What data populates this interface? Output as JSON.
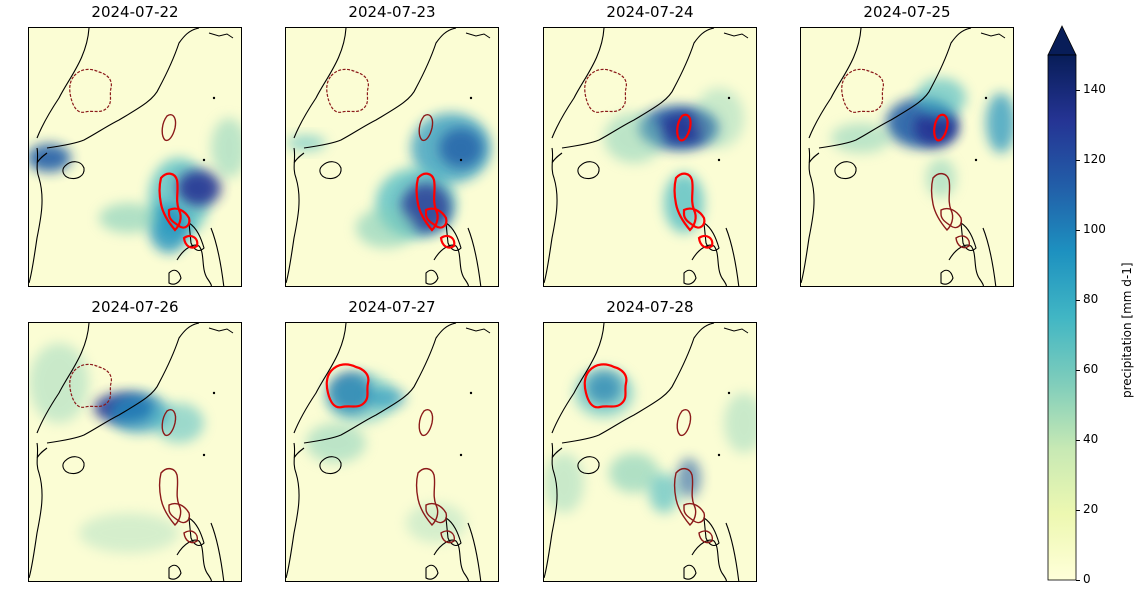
{
  "panels": [
    {
      "title": "2024-07-22",
      "highlight": "luzon",
      "rain": "luzon-storm"
    },
    {
      "title": "2024-07-23",
      "highlight": "luzon",
      "rain": "typhoon-ne"
    },
    {
      "title": "2024-07-24",
      "highlight": "taiwan-luzon",
      "rain": "taiwan"
    },
    {
      "title": "2024-07-25",
      "highlight": "taiwan",
      "rain": "taiwan-coast"
    },
    {
      "title": "2024-07-26",
      "highlight": "none",
      "rain": "fujian"
    },
    {
      "title": "2024-07-27",
      "highlight": "inland",
      "rain": "inland"
    },
    {
      "title": "2024-07-28",
      "highlight": "inland",
      "rain": "inland-weak"
    }
  ],
  "colorbar": {
    "label": "precipitation [mm d-1]",
    "ticks": [
      "0",
      "20",
      "40",
      "60",
      "80",
      "100",
      "120",
      "140"
    ],
    "min": 0,
    "max": 150,
    "extend": "max",
    "colormap": "YlGnBu",
    "colors": [
      "#ffffd9",
      "#edf8b1",
      "#c7e9b4",
      "#7fcdbb",
      "#41b6c4",
      "#1d91c0",
      "#225ea8",
      "#253494",
      "#081d58"
    ]
  },
  "legend_colors": {
    "highlight_active": "#ff0000",
    "region_inactive": "#8b1a1a",
    "coastline": "#000000"
  }
}
